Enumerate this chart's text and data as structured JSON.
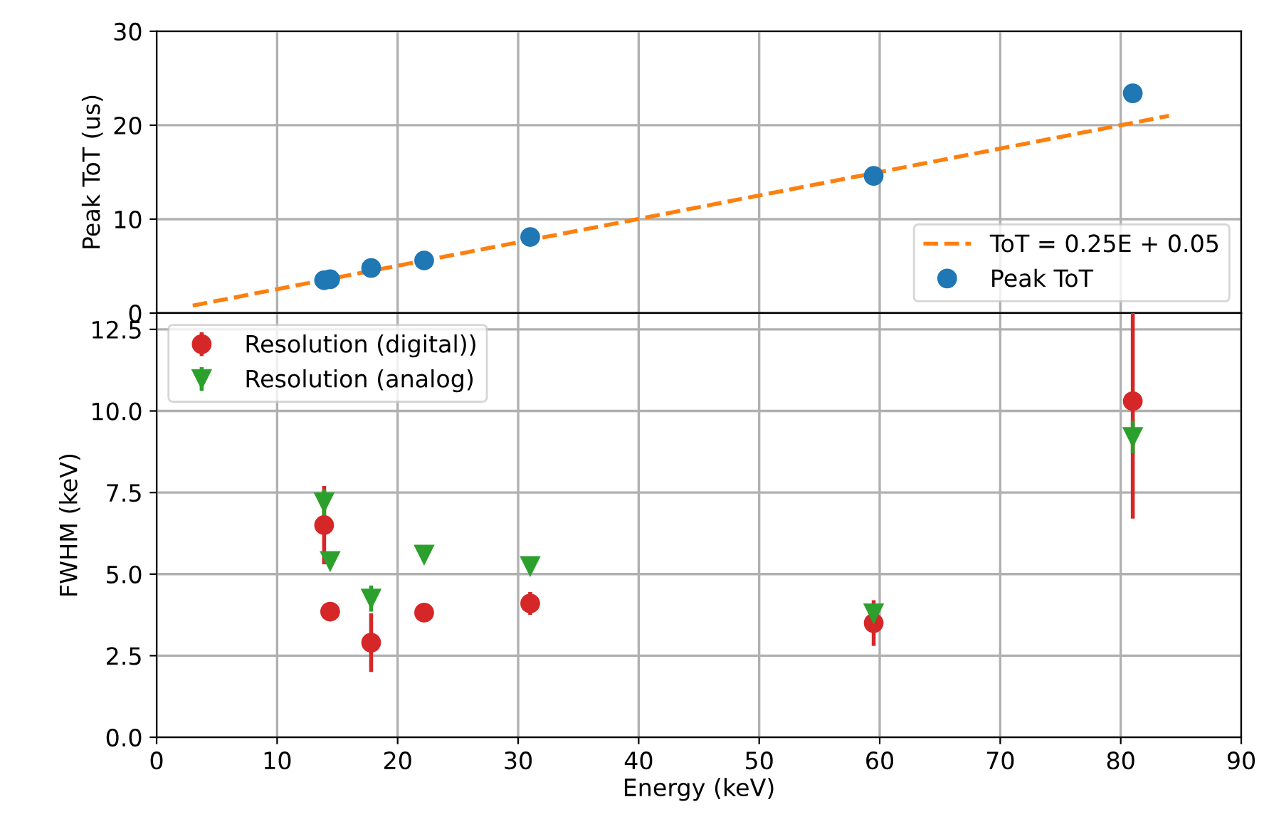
{
  "chart_data": [
    {
      "type": "scatter",
      "ylabel": "Peak ToT (us)",
      "xlim": [
        0,
        90
      ],
      "ylim": [
        0,
        30
      ],
      "yticks": [
        0,
        10,
        20,
        30
      ],
      "xticks": [
        0,
        10,
        20,
        30,
        40,
        50,
        60,
        70,
        80,
        90
      ],
      "tick_labels": "y",
      "grid": true,
      "legend": "bottom right",
      "series": [
        {
          "name": "ToT = 0.25E + 0.05",
          "type": "line",
          "line_style": "dashed",
          "marker": "none",
          "color": "#ff7f0e",
          "x": [
            3,
            84
          ],
          "values": [
            0.8,
            21
          ]
        },
        {
          "name": "Peak ToT",
          "type": "scatter",
          "marker": "circle",
          "color": "#1f77b4",
          "x": [
            13.9,
            14.4,
            17.8,
            22.2,
            31.0,
            59.5,
            81.0
          ],
          "values": [
            3.5,
            3.6,
            4.8,
            5.6,
            8.1,
            14.6,
            23.4
          ]
        }
      ]
    },
    {
      "type": "scatter",
      "xlabel": "Energy (keV)",
      "ylabel": "FWHM (keV)",
      "xlim": [
        0,
        90
      ],
      "ylim": [
        0,
        13
      ],
      "xticks": [
        0,
        10,
        20,
        30,
        40,
        50,
        60,
        70,
        80,
        90
      ],
      "yticks": [
        {
          "value": 0,
          "label": "0.0"
        },
        2.5,
        {
          "value": 5,
          "label": "5.0"
        },
        7.5,
        {
          "value": 10,
          "label": "10.0"
        },
        12.5
      ],
      "grid": true,
      "legend": "top left",
      "series": [
        {
          "name": "Resolution (digital))",
          "marker": "circle",
          "color": "#d62728",
          "x": [
            13.9,
            14.4,
            17.8,
            22.2,
            31.0,
            59.5,
            81.0
          ],
          "values": [
            6.5,
            3.85,
            2.9,
            3.82,
            4.1,
            3.5,
            10.3
          ],
          "errors": [
            1.2,
            0.25,
            0.9,
            0.2,
            0.35,
            0.7,
            3.6
          ]
        },
        {
          "name": "Resolution (analog)",
          "marker": "triangle",
          "color": "#2ca02c",
          "x": [
            13.9,
            14.4,
            17.8,
            22.2,
            31.0,
            59.5,
            81.0
          ],
          "values": [
            7.2,
            5.4,
            4.25,
            5.6,
            5.25,
            3.8,
            9.2
          ],
          "errors": [
            0.4,
            0.1,
            0.4,
            0.1,
            0.1,
            0.2,
            0.5
          ]
        }
      ]
    }
  ]
}
